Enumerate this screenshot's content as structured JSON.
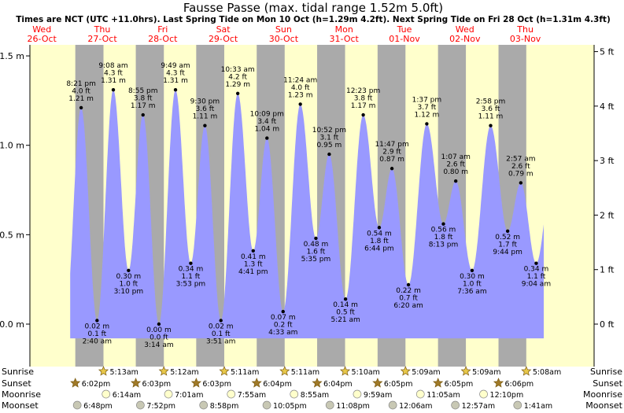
{
  "colors": {
    "day": "#ffffcc",
    "night": "#aaaaaa",
    "tide_fill": "#9999ff",
    "day_label": "#ff0000",
    "sun_icon": "#e8c84a",
    "moon_icon": "#ffffcc",
    "moonset_icon": "#c8c8b4"
  },
  "header": {
    "title": "Fausse Passe (max. tidal range 1.52m 5.0ft)",
    "subtitle": "Times are NCT (UTC +11.0hrs). Last Spring Tide on Mon 10 Oct (h=1.29m 4.2ft). Next Spring Tide on Fri 28 Oct (h=1.31m 4.3ft)"
  },
  "days": [
    {
      "dow": "Wed",
      "date": "26-Oct"
    },
    {
      "dow": "Thu",
      "date": "27-Oct"
    },
    {
      "dow": "Fri",
      "date": "28-Oct"
    },
    {
      "dow": "Sat",
      "date": "29-Oct"
    },
    {
      "dow": "Sun",
      "date": "30-Oct"
    },
    {
      "dow": "Mon",
      "date": "31-Oct"
    },
    {
      "dow": "Tue",
      "date": "01-Nov"
    },
    {
      "dow": "Wed",
      "date": "02-Nov"
    },
    {
      "dow": "Thu",
      "date": "03-Nov"
    }
  ],
  "chart_data": {
    "type": "area",
    "x_axis": "time (hours from 00:00 Wed 26-Oct, NCT)",
    "y_left_unit": "m",
    "y_right_unit": "ft",
    "ylim_m": [
      -0.18,
      1.65
    ],
    "y_ticks_m": [
      "0.0 m",
      "0.5 m",
      "1.0 m",
      "1.5 m"
    ],
    "y_ticks_ft": [
      "0 ft",
      "1 ft",
      "2 ft",
      "3 ft",
      "4 ft",
      "5 ft"
    ],
    "extremes": [
      {
        "t": 20.35,
        "m": 1.21,
        "ft": "4.0 ft",
        "ml": "1.21 m",
        "time": "8:21 pm"
      },
      {
        "t": 26.67,
        "m": 0.02,
        "ft": "0.1 ft",
        "ml": "0.02 m",
        "time": "2:40 am"
      },
      {
        "t": 33.13,
        "m": 1.31,
        "ft": "4.3 ft",
        "ml": "1.31 m",
        "time": "9:08 am"
      },
      {
        "t": 39.17,
        "m": 0.3,
        "ft": "1.0 ft",
        "ml": "0.30 m",
        "time": "3:10 pm"
      },
      {
        "t": 44.92,
        "m": 1.17,
        "ft": "3.8 ft",
        "ml": "1.17 m",
        "time": "8:55 pm"
      },
      {
        "t": 51.23,
        "m": 0.0,
        "ft": "0.0 ft",
        "ml": "0.00 m",
        "time": "3:14 am"
      },
      {
        "t": 57.82,
        "m": 1.31,
        "ft": "4.3 ft",
        "ml": "1.31 m",
        "time": "9:49 am"
      },
      {
        "t": 63.88,
        "m": 0.34,
        "ft": "1.1 ft",
        "ml": "0.34 m",
        "time": "3:53 pm"
      },
      {
        "t": 69.5,
        "m": 1.11,
        "ft": "3.6 ft",
        "ml": "1.11 m",
        "time": "9:30 pm"
      },
      {
        "t": 75.85,
        "m": 0.02,
        "ft": "0.1 ft",
        "ml": "0.02 m",
        "time": "3:51 am"
      },
      {
        "t": 82.55,
        "m": 1.29,
        "ft": "4.2 ft",
        "ml": "1.29 m",
        "time": "10:33 am"
      },
      {
        "t": 88.68,
        "m": 0.41,
        "ft": "1.3 ft",
        "ml": "0.41 m",
        "time": "4:41 pm"
      },
      {
        "t": 94.15,
        "m": 1.04,
        "ft": "3.4 ft",
        "ml": "1.04 m",
        "time": "10:09 pm"
      },
      {
        "t": 100.55,
        "m": 0.07,
        "ft": "0.2 ft",
        "ml": "0.07 m",
        "time": "4:33 am"
      },
      {
        "t": 107.4,
        "m": 1.23,
        "ft": "4.0 ft",
        "ml": "1.23 m",
        "time": "11:24 am"
      },
      {
        "t": 113.58,
        "m": 0.48,
        "ft": "1.6 ft",
        "ml": "0.48 m",
        "time": "5:35 pm"
      },
      {
        "t": 118.87,
        "m": 0.95,
        "ft": "3.1 ft",
        "ml": "0.95 m",
        "time": "10:52 pm"
      },
      {
        "t": 125.35,
        "m": 0.14,
        "ft": "0.5 ft",
        "ml": "0.14 m",
        "time": "5:21 am"
      },
      {
        "t": 132.38,
        "m": 1.17,
        "ft": "3.8 ft",
        "ml": "1.17 m",
        "time": "12:23 pm"
      },
      {
        "t": 138.73,
        "m": 0.54,
        "ft": "1.8 ft",
        "ml": "0.54 m",
        "time": "6:44 pm"
      },
      {
        "t": 143.78,
        "m": 0.87,
        "ft": "2.9 ft",
        "ml": "0.87 m",
        "time": "11:47 pm"
      },
      {
        "t": 150.33,
        "m": 0.22,
        "ft": "0.7 ft",
        "ml": "0.22 m",
        "time": "6:20 am"
      },
      {
        "t": 157.62,
        "m": 1.12,
        "ft": "3.7 ft",
        "ml": "1.12 m",
        "time": "1:37 pm"
      },
      {
        "t": 164.22,
        "m": 0.56,
        "ft": "1.8 ft",
        "ml": "0.56 m",
        "time": "8:13 pm"
      },
      {
        "t": 169.12,
        "m": 0.8,
        "ft": "2.6 ft",
        "ml": "0.80 m",
        "time": "1:07 am"
      },
      {
        "t": 175.6,
        "m": 0.3,
        "ft": "1.0 ft",
        "ml": "0.30 m",
        "time": "7:36 am"
      },
      {
        "t": 182.97,
        "m": 1.11,
        "ft": "3.6 ft",
        "ml": "1.11 m",
        "time": "2:58 pm"
      },
      {
        "t": 189.73,
        "m": 0.52,
        "ft": "1.7 ft",
        "ml": "0.52 m",
        "time": "9:44 pm"
      },
      {
        "t": 194.95,
        "m": 0.79,
        "ft": "2.6 ft",
        "ml": "0.79 m",
        "time": "2:57 am"
      },
      {
        "t": 201.07,
        "m": 0.34,
        "ft": "1.1 ft",
        "ml": "0.34 m",
        "time": "9:04 am"
      }
    ]
  },
  "astro": {
    "labels": {
      "sunrise": "Sunrise",
      "sunset": "Sunset",
      "moonrise": "Moonrise",
      "moonset": "Moonset"
    },
    "sunrise": [
      {
        "t": 29.22,
        "time": "5:13am"
      },
      {
        "t": 53.2,
        "time": "5:12am"
      },
      {
        "t": 77.18,
        "time": "5:11am"
      },
      {
        "t": 101.18,
        "time": "5:11am"
      },
      {
        "t": 125.17,
        "time": "5:10am"
      },
      {
        "t": 149.15,
        "time": "5:09am"
      },
      {
        "t": 173.15,
        "time": "5:09am"
      },
      {
        "t": 197.13,
        "time": "5:08am"
      }
    ],
    "sunset": [
      {
        "t": 18.03,
        "time": "6:02pm"
      },
      {
        "t": 42.05,
        "time": "6:03pm"
      },
      {
        "t": 66.05,
        "time": "6:03pm"
      },
      {
        "t": 90.07,
        "time": "6:04pm"
      },
      {
        "t": 114.07,
        "time": "6:04pm"
      },
      {
        "t": 138.08,
        "time": "6:05pm"
      },
      {
        "t": 162.08,
        "time": "6:05pm"
      },
      {
        "t": 186.1,
        "time": "6:06pm"
      }
    ],
    "moonrise": [
      {
        "t": 30.23,
        "time": "6:14am"
      },
      {
        "t": 55.02,
        "time": "7:01am"
      },
      {
        "t": 79.92,
        "time": "7:55am"
      },
      {
        "t": 104.92,
        "time": "8:55am"
      },
      {
        "t": 129.98,
        "time": "9:59am"
      },
      {
        "t": 155.08,
        "time": "11:05am"
      },
      {
        "t": 180.17,
        "time": "12:10pm"
      }
    ],
    "moonset": [
      {
        "t": 18.8,
        "time": "6:48pm"
      },
      {
        "t": 43.87,
        "time": "7:52pm"
      },
      {
        "t": 68.97,
        "time": "8:58pm"
      },
      {
        "t": 94.08,
        "time": "10:05pm"
      },
      {
        "t": 119.13,
        "time": "11:08pm"
      },
      {
        "t": 144.1,
        "time": "12:06am"
      },
      {
        "t": 168.95,
        "time": "12:57am"
      },
      {
        "t": 193.68,
        "time": "1:41am"
      }
    ]
  }
}
